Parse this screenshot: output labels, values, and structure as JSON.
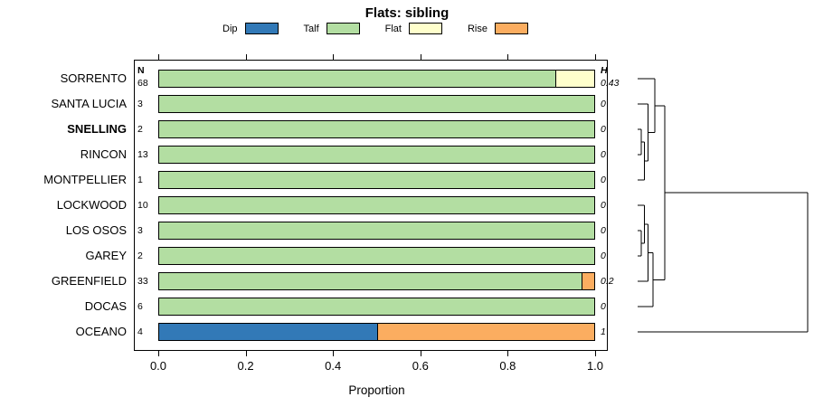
{
  "chart_data": {
    "type": "bar",
    "orientation": "horizontal-stacked",
    "title": "Flats: sibling",
    "xlabel": "Proportion",
    "xlim": [
      0,
      1
    ],
    "xticks": [
      {
        "value": 0.0,
        "label": "0.0"
      },
      {
        "value": 0.2,
        "label": "0.2"
      },
      {
        "value": 0.4,
        "label": "0.4"
      },
      {
        "value": 0.6,
        "label": "0.6"
      },
      {
        "value": 0.8,
        "label": "0.8"
      },
      {
        "value": 1.0,
        "label": "1.0"
      }
    ],
    "legend": [
      {
        "label": "Dip",
        "color": "#3279b7"
      },
      {
        "label": "Talf",
        "color": "#b3dea2"
      },
      {
        "label": "Flat",
        "color": "#ffffcc"
      },
      {
        "label": "Rise",
        "color": "#fbad60"
      }
    ],
    "columns": {
      "n_header": "N",
      "h_header": "H"
    },
    "rows": [
      {
        "label": "SORRENTO",
        "bold": false,
        "n": "68",
        "h": "0.43",
        "segments": [
          {
            "name": "Talf",
            "value": 0.91
          },
          {
            "name": "Flat",
            "value": 0.09
          }
        ]
      },
      {
        "label": "SANTA LUCIA",
        "bold": false,
        "n": "3",
        "h": "0",
        "segments": [
          {
            "name": "Talf",
            "value": 1
          }
        ]
      },
      {
        "label": "SNELLING",
        "bold": true,
        "n": "2",
        "h": "0",
        "segments": [
          {
            "name": "Talf",
            "value": 1
          }
        ]
      },
      {
        "label": "RINCON",
        "bold": false,
        "n": "13",
        "h": "0",
        "segments": [
          {
            "name": "Talf",
            "value": 1
          }
        ]
      },
      {
        "label": "MONTPELLIER",
        "bold": false,
        "n": "1",
        "h": "0",
        "segments": [
          {
            "name": "Talf",
            "value": 1
          }
        ]
      },
      {
        "label": "LOCKWOOD",
        "bold": false,
        "n": "10",
        "h": "0",
        "segments": [
          {
            "name": "Talf",
            "value": 1
          }
        ]
      },
      {
        "label": "LOS OSOS",
        "bold": false,
        "n": "3",
        "h": "0",
        "segments": [
          {
            "name": "Talf",
            "value": 1
          }
        ]
      },
      {
        "label": "GAREY",
        "bold": false,
        "n": "2",
        "h": "0",
        "segments": [
          {
            "name": "Talf",
            "value": 1
          }
        ]
      },
      {
        "label": "GREENFIELD",
        "bold": false,
        "n": "33",
        "h": "0.2",
        "segments": [
          {
            "name": "Talf",
            "value": 0.97
          },
          {
            "name": "Rise",
            "value": 0.03
          }
        ]
      },
      {
        "label": "DOCAS",
        "bold": false,
        "n": "6",
        "h": "0",
        "segments": [
          {
            "name": "Talf",
            "value": 1
          }
        ]
      },
      {
        "label": "OCEANO",
        "bold": false,
        "n": "4",
        "h": "1",
        "segments": [
          {
            "name": "Dip",
            "value": 0.5
          },
          {
            "name": "Rise",
            "value": 0.5
          }
        ]
      }
    ],
    "dendrogram": {
      "height": 1,
      "children": [
        {
          "height": 0.16,
          "children": [
            {
              "height": 0.1,
              "children": [
                {
                  "leaf": "SORRENTO"
                },
                {
                  "height": 0.06,
                  "children": [
                    {
                      "leaf": "SANTA LUCIA"
                    },
                    {
                      "height": 0.04,
                      "children": [
                        {
                          "height": 0.02,
                          "children": [
                            {
                              "leaf": "SNELLING"
                            },
                            {
                              "leaf": "RINCON"
                            }
                          ]
                        },
                        {
                          "leaf": "MONTPELLIER"
                        }
                      ]
                    }
                  ]
                }
              ]
            },
            {
              "height": 0.09,
              "children": [
                {
                  "height": 0.06,
                  "children": [
                    {
                      "height": 0.04,
                      "children": [
                        {
                          "leaf": "LOCKWOOD"
                        },
                        {
                          "height": 0.02,
                          "children": [
                            {
                              "leaf": "LOS OSOS"
                            },
                            {
                              "leaf": "GAREY"
                            }
                          ]
                        }
                      ]
                    },
                    {
                      "leaf": "GREENFIELD"
                    }
                  ]
                },
                {
                  "leaf": "DOCAS"
                }
              ]
            }
          ]
        },
        {
          "leaf": "OCEANO"
        }
      ]
    }
  }
}
